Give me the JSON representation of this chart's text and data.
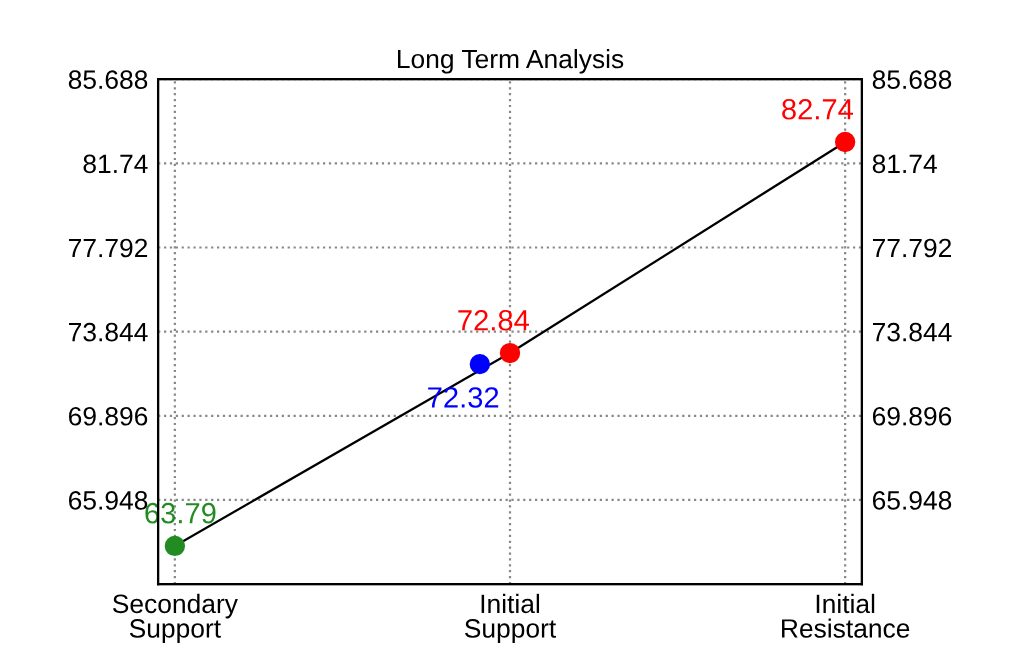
{
  "chart_data": {
    "type": "line",
    "title": "Long Term Analysis",
    "categories": [
      "Secondary\nSupport",
      "Initial\nSupport",
      "Initial\nResistance"
    ],
    "series": [
      {
        "color": "#000000",
        "values": [
          63.79,
          72.84,
          82.74
        ]
      },
      {
        "type": "scatter",
        "color": "#228b22",
        "values": [
          63.79,
          null,
          null
        ],
        "value_labels": [
          "63.79",
          null,
          null
        ],
        "marker": "circle"
      },
      {
        "type": "scatter",
        "color": "#0000ff",
        "values": [
          null,
          72.32,
          null
        ],
        "value_labels": [
          null,
          "72.32",
          null
        ],
        "marker": "circle"
      },
      {
        "type": "scatter",
        "color": "#ff0000",
        "values": [
          null,
          72.84,
          82.74
        ],
        "value_labels": [
          null,
          "72.84",
          "82.74"
        ],
        "marker": "circle"
      }
    ],
    "ylim": [
      62.0,
      85.688
    ],
    "yticks": [
      65.948,
      69.896,
      73.844,
      77.792,
      81.74,
      85.688
    ],
    "y2lim": [
      62.0,
      85.688
    ],
    "y2ticks": [
      65.948,
      69.896,
      73.844,
      77.792,
      81.74,
      85.688
    ],
    "grid": true,
    "legend": false
  }
}
